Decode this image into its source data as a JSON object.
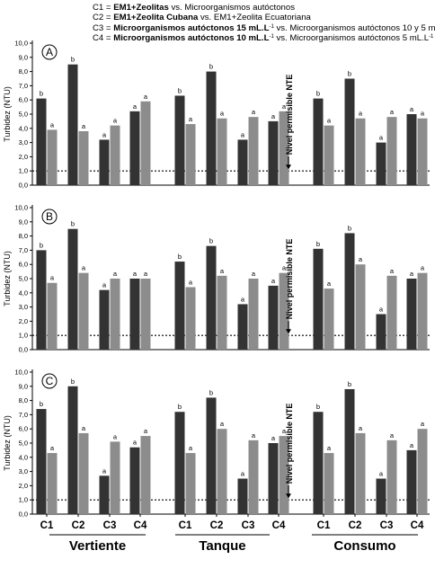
{
  "legend": {
    "c1": {
      "code": "C1 = ",
      "bold": "EM1+Zeolitas",
      "rest": " vs. Microorganismos autóctonos",
      "sup": "",
      "tail": ""
    },
    "c2": {
      "code": "C2 = ",
      "bold": "EM1+Zeolita Cubana",
      "rest": " vs. EM1+Zeolita Ecuatoriana",
      "sup": "",
      "tail": ""
    },
    "c3": {
      "code": "C3 = ",
      "bold": "Microorganismos autóctonos 15 mL.L",
      "rest": "",
      "sup": "-1",
      "tail": " vs. Microorganismos autóctonos 10 y 5 mL.L"
    },
    "c3_sup2": "-1",
    "c4": {
      "code": "C4 = ",
      "bold": "Microorganismos autóctonos 10 mL.L",
      "rest": "",
      "sup": "-1",
      "tail": " vs. Microorganismos autóctonos  5 mL.L"
    },
    "c4_sup2": "-1"
  },
  "chart_data": {
    "type": "bar",
    "ylabel": "Turbidez (NTU)",
    "ylim": [
      0,
      10
    ],
    "yticks": [
      "0,0",
      "1,0",
      "2,0",
      "3,0",
      "4,0",
      "5,0",
      "6,0",
      "7,0",
      "8,0",
      "9,0",
      "10,0"
    ],
    "reference_line": {
      "value": 1.0,
      "label": "Nivel permisible NTE"
    },
    "groups": [
      "Vertiente",
      "Tanque",
      "Consumo"
    ],
    "categories": [
      "C1",
      "C2",
      "C3",
      "C4"
    ],
    "colors": {
      "first": "#333333",
      "second": "#8c8c8c"
    },
    "panels": [
      {
        "label": "A",
        "values": [
          [
            [
              6.1,
              3.9
            ],
            [
              8.5,
              3.8
            ],
            [
              3.2,
              4.2
            ],
            [
              5.2,
              5.9
            ]
          ],
          [
            [
              6.3,
              4.3
            ],
            [
              8.0,
              4.7
            ],
            [
              3.2,
              4.8
            ],
            [
              4.5,
              5.2
            ]
          ],
          [
            [
              6.1,
              4.2
            ],
            [
              7.5,
              4.7
            ],
            [
              3.0,
              4.8
            ],
            [
              5.0,
              4.7
            ]
          ]
        ],
        "letters": [
          [
            [
              "b",
              "a"
            ],
            [
              "b",
              "a"
            ],
            [
              "a",
              "a"
            ],
            [
              "a",
              "a"
            ]
          ],
          [
            [
              "b",
              "a"
            ],
            [
              "b",
              "a"
            ],
            [
              "a",
              "a"
            ],
            [
              "a",
              "a"
            ]
          ],
          [
            [
              "b",
              "a"
            ],
            [
              "b",
              "a"
            ],
            [
              "a",
              "a"
            ],
            [
              "a",
              "a"
            ]
          ]
        ]
      },
      {
        "label": "B",
        "values": [
          [
            [
              7.0,
              4.7
            ],
            [
              8.5,
              5.4
            ],
            [
              4.2,
              5.0
            ],
            [
              5.0,
              5.0
            ]
          ],
          [
            [
              6.2,
              4.4
            ],
            [
              7.3,
              5.2
            ],
            [
              3.2,
              5.0
            ],
            [
              4.5,
              5.4
            ]
          ],
          [
            [
              7.1,
              4.3
            ],
            [
              8.2,
              6.0
            ],
            [
              2.5,
              5.2
            ],
            [
              5.0,
              5.4
            ]
          ]
        ],
        "letters": [
          [
            [
              "b",
              "a"
            ],
            [
              "b",
              "a"
            ],
            [
              "a",
              "a"
            ],
            [
              "a",
              "a"
            ]
          ],
          [
            [
              "b",
              "a"
            ],
            [
              "b",
              "a"
            ],
            [
              "a",
              "a"
            ],
            [
              "a",
              "a"
            ]
          ],
          [
            [
              "b",
              "a"
            ],
            [
              "b",
              "a"
            ],
            [
              "a",
              "a"
            ],
            [
              "a",
              "a"
            ]
          ]
        ]
      },
      {
        "label": "C",
        "values": [
          [
            [
              7.4,
              4.3
            ],
            [
              9.0,
              5.7
            ],
            [
              2.7,
              5.1
            ],
            [
              4.7,
              5.5
            ]
          ],
          [
            [
              7.2,
              4.3
            ],
            [
              8.2,
              6.0
            ],
            [
              2.5,
              5.2
            ],
            [
              5.0,
              5.5
            ]
          ],
          [
            [
              7.2,
              4.3
            ],
            [
              8.8,
              5.7
            ],
            [
              2.5,
              5.2
            ],
            [
              4.5,
              6.0
            ]
          ]
        ],
        "letters": [
          [
            [
              "b",
              "a"
            ],
            [
              "b",
              "a"
            ],
            [
              "a",
              "a"
            ],
            [
              "a",
              "a"
            ]
          ],
          [
            [
              "b",
              "a"
            ],
            [
              "b",
              "a"
            ],
            [
              "a",
              "a"
            ],
            [
              "a",
              "a"
            ]
          ],
          [
            [
              "b",
              "a"
            ],
            [
              "b",
              "a"
            ],
            [
              "a",
              "a"
            ],
            [
              "a",
              "a"
            ]
          ]
        ]
      }
    ]
  }
}
